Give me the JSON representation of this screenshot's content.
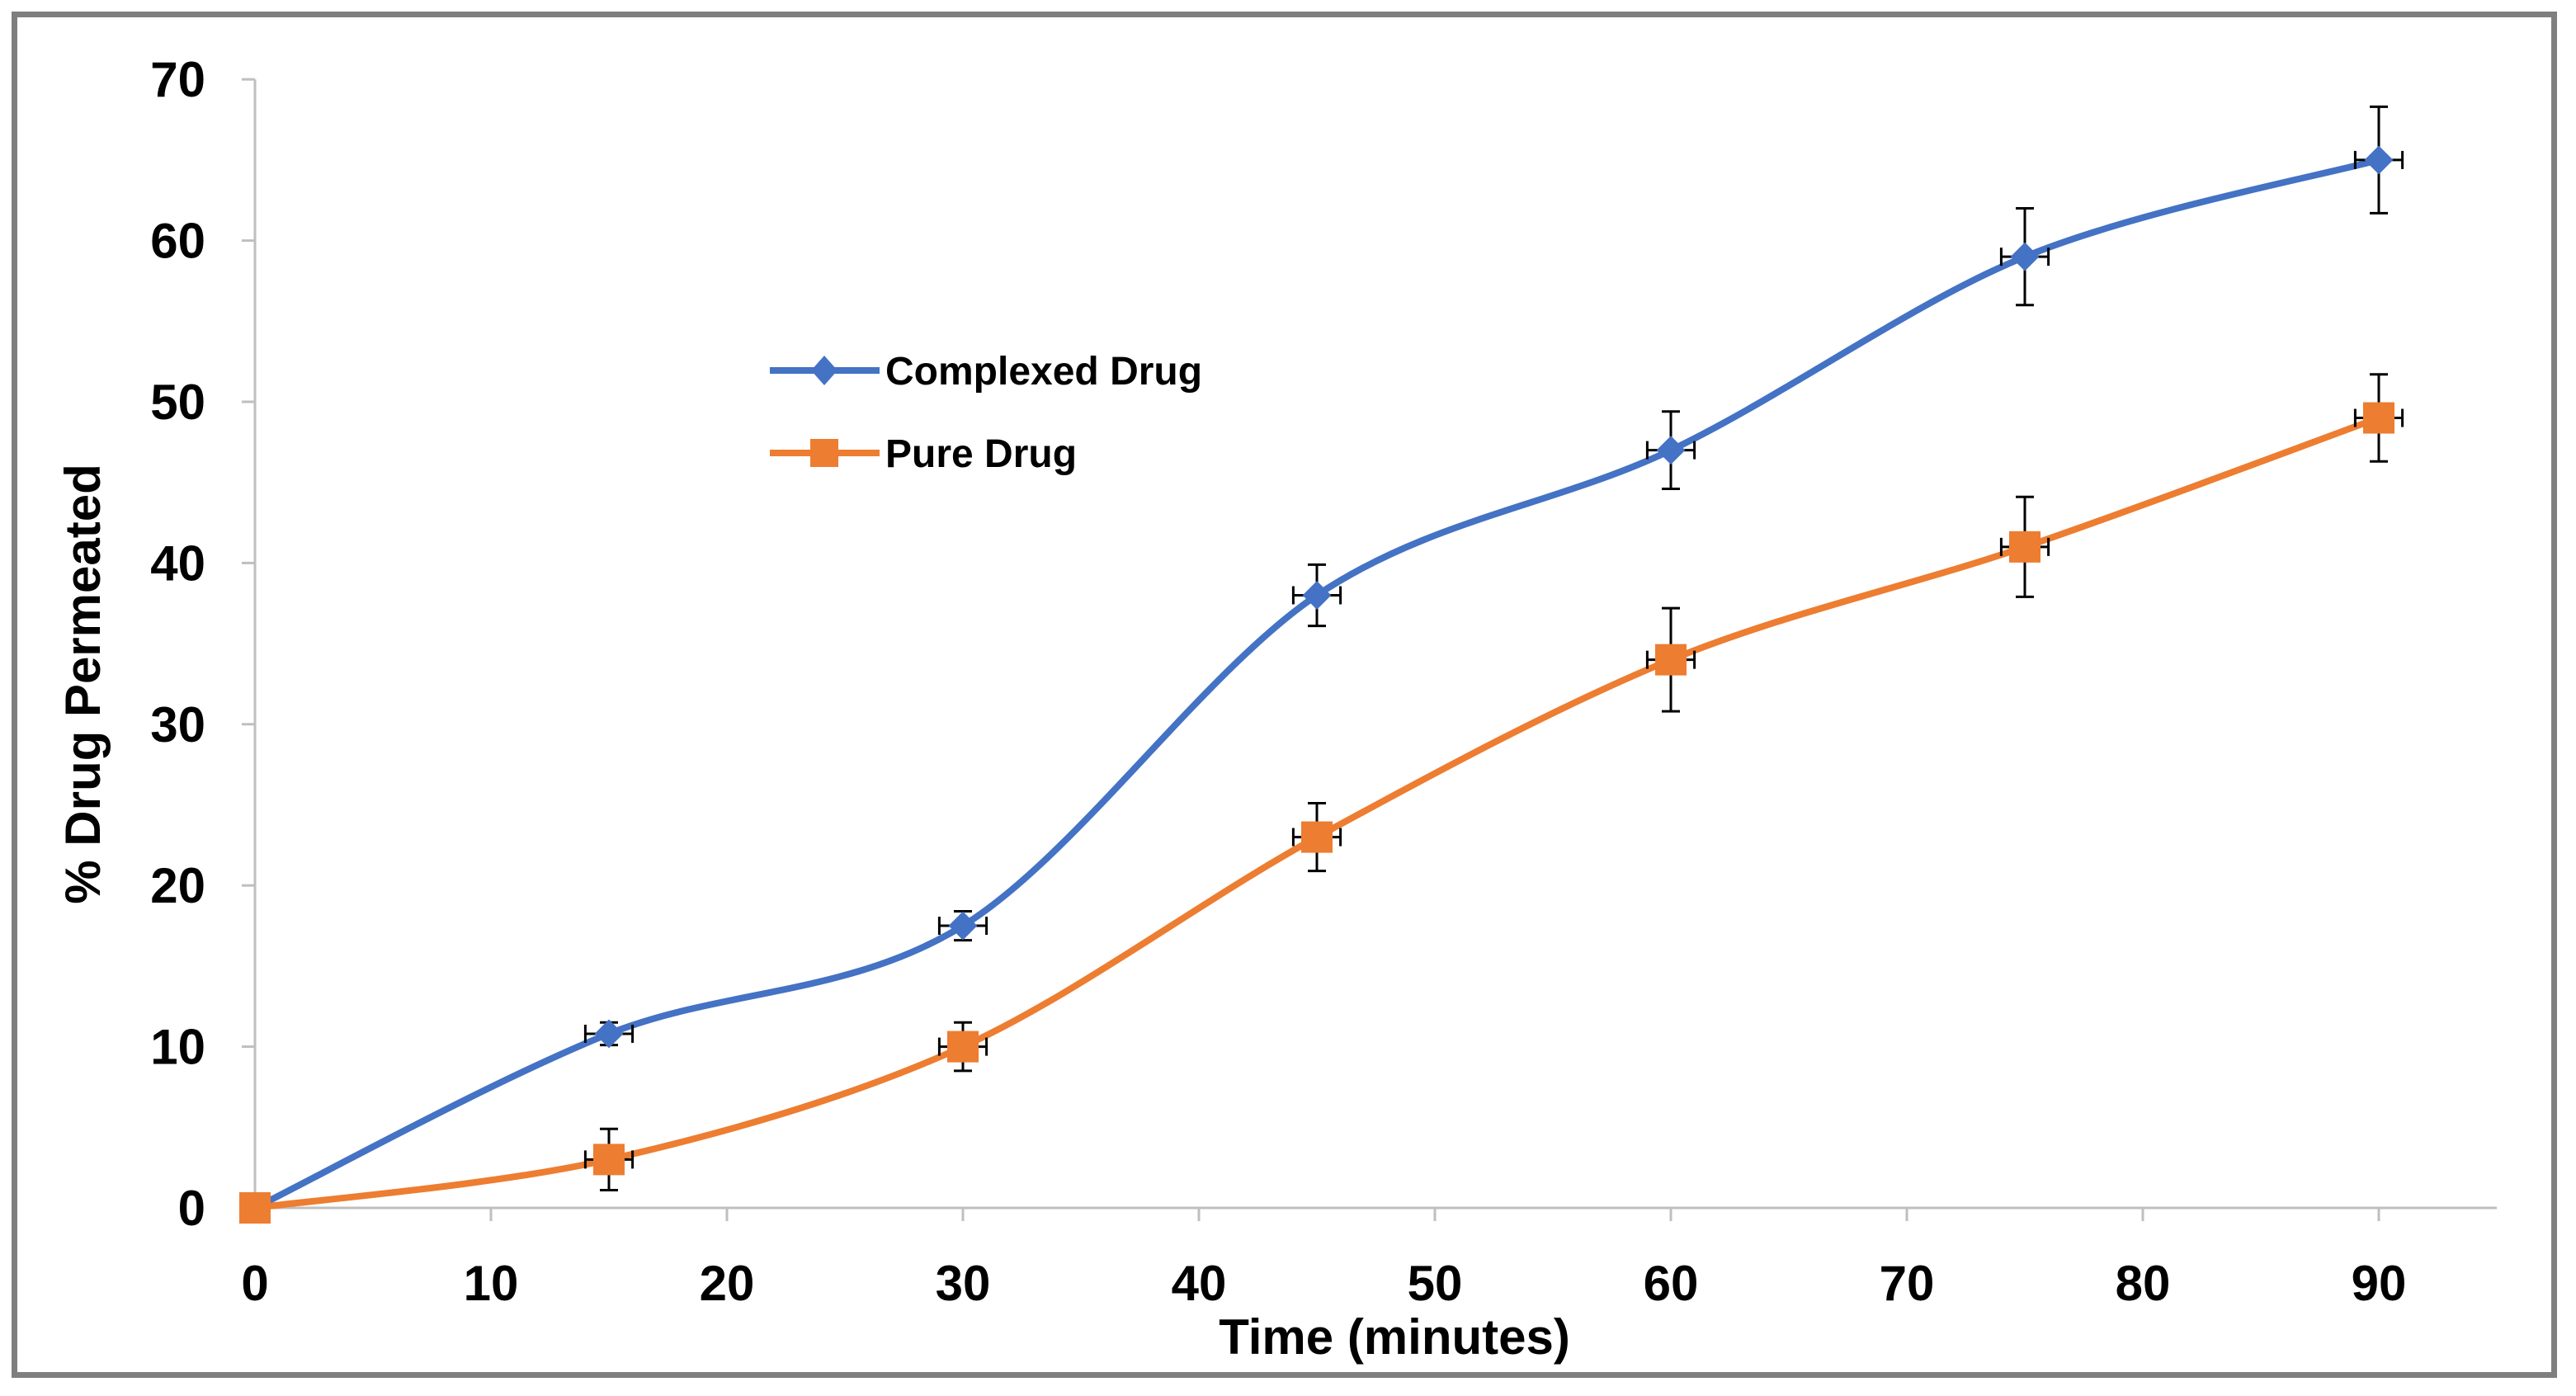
{
  "chart_data": {
    "type": "line",
    "title": "",
    "xlabel": "Time (minutes)",
    "ylabel": "% Drug Permeated",
    "xlim": [
      0,
      95
    ],
    "ylim": [
      0,
      70
    ],
    "xticks": [
      0,
      10,
      20,
      30,
      40,
      50,
      60,
      70,
      80,
      90
    ],
    "yticks": [
      0,
      10,
      20,
      30,
      40,
      50,
      60,
      70
    ],
    "grid": false,
    "legend_position": "upper-left-center",
    "series": [
      {
        "name": "Complexed Drug",
        "color": "#4472C4",
        "marker": "diamond",
        "x": [
          0,
          15,
          30,
          45,
          60,
          75,
          90
        ],
        "y": [
          0,
          10.8,
          17.5,
          38,
          47,
          59,
          65
        ],
        "y_error": [
          0,
          0.7,
          0.9,
          1.9,
          2.4,
          3.0,
          3.3
        ],
        "x_error": [
          0,
          1.0,
          1.0,
          1.0,
          1.0,
          1.0,
          1.0
        ]
      },
      {
        "name": "Pure Drug",
        "color": "#ED7D31",
        "marker": "square",
        "x": [
          0,
          15,
          30,
          45,
          60,
          75,
          90
        ],
        "y": [
          0,
          3,
          10,
          23,
          34,
          41,
          49
        ],
        "y_error": [
          0,
          1.9,
          1.5,
          2.1,
          3.2,
          3.1,
          2.7
        ],
        "x_error": [
          0,
          1.0,
          1.0,
          1.0,
          1.0,
          1.0,
          1.0
        ]
      }
    ]
  }
}
